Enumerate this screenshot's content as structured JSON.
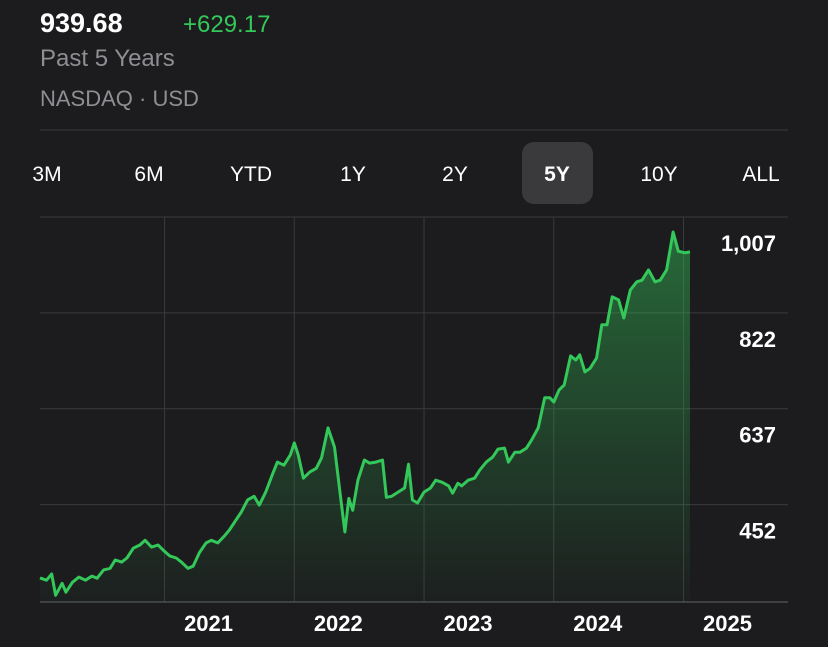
{
  "header": {
    "price": "939.68",
    "change": "+629.17",
    "period": "Past 5 Years",
    "exchange": "NASDAQ · USD"
  },
  "tabs": {
    "labels": [
      "3M",
      "6M",
      "YTD",
      "1Y",
      "2Y",
      "5Y",
      "10Y",
      "ALL"
    ],
    "selected": 5
  },
  "chart_data": {
    "type": "line",
    "x": [
      2020.04,
      2020.09,
      2020.13,
      2020.16,
      2020.21,
      2020.24,
      2020.29,
      2020.34,
      2020.39,
      2020.44,
      2020.48,
      2020.53,
      2020.58,
      2020.62,
      2020.67,
      2020.71,
      2020.76,
      2020.81,
      2020.85,
      2020.9,
      2020.95,
      2020.99,
      2021.04,
      2021.09,
      2021.13,
      2021.18,
      2021.22,
      2021.27,
      2021.32,
      2021.36,
      2021.41,
      2021.46,
      2021.5,
      2021.55,
      2021.59,
      2021.64,
      2021.69,
      2021.73,
      2021.78,
      2021.83,
      2021.87,
      2021.92,
      2021.97,
      2022.0,
      2022.03,
      2022.07,
      2022.12,
      2022.17,
      2022.21,
      2022.26,
      2022.31,
      2022.35,
      2022.39,
      2022.42,
      2022.45,
      2022.49,
      2022.54,
      2022.58,
      2022.63,
      2022.68,
      2022.71,
      2022.75,
      2022.8,
      2022.85,
      2022.88,
      2022.91,
      2022.95,
      2023.0,
      2023.05,
      2023.09,
      2023.14,
      2023.19,
      2023.22,
      2023.26,
      2023.29,
      2023.34,
      2023.39,
      2023.43,
      2023.48,
      2023.53,
      2023.57,
      2023.62,
      2023.65,
      2023.7,
      2023.74,
      2023.79,
      2023.83,
      2023.88,
      2023.93,
      2023.97,
      2024.0,
      2024.04,
      2024.08,
      2024.13,
      2024.17,
      2024.2,
      2024.24,
      2024.28,
      2024.33,
      2024.37,
      2024.41,
      2024.45,
      2024.5,
      2024.54,
      2024.59,
      2024.64,
      2024.68,
      2024.73,
      2024.78,
      2024.82,
      2024.87,
      2024.92,
      2024.96,
      2025.01,
      2025.05
    ],
    "series": [
      {
        "color": "#34c759",
        "values": [
          310.51,
          306,
          318,
          277,
          300,
          283,
          302,
          312,
          306,
          314,
          310,
          326,
          329,
          345,
          341,
          349,
          368,
          374,
          383,
          370,
          374,
          364,
          353,
          349,
          341,
          329,
          333,
          360,
          378,
          383,
          378,
          391,
          403,
          422,
          437,
          461,
          468,
          451,
          476,
          509,
          534,
          528,
          548,
          571,
          548,
          503,
          515,
          522,
          542,
          600,
          563,
          480,
          399,
          464,
          441,
          499,
          538,
          532,
          534,
          538,
          466,
          468,
          476,
          484,
          530,
          461,
          455,
          476,
          484,
          499,
          495,
          488,
          474,
          493,
          488,
          499,
          503,
          519,
          534,
          544,
          559,
          561,
          534,
          553,
          553,
          561,
          577,
          600,
          658,
          658,
          650,
          673,
          683,
          739,
          731,
          741,
          708,
          715,
          735,
          799,
          799,
          853,
          847,
          812,
          866,
          882,
          885,
          905,
          882,
          885,
          905,
          978,
          941,
          938,
          939.68
        ]
      }
    ],
    "xlim": [
      2020.04,
      2025.05
    ],
    "xticks": [
      2021,
      2022,
      2023,
      2024,
      2025
    ],
    "ylim": [
      264,
      1007
    ],
    "yticks": [
      452,
      637,
      822,
      {
        "value": 1007,
        "label": "1,007"
      }
    ],
    "grid": true
  }
}
